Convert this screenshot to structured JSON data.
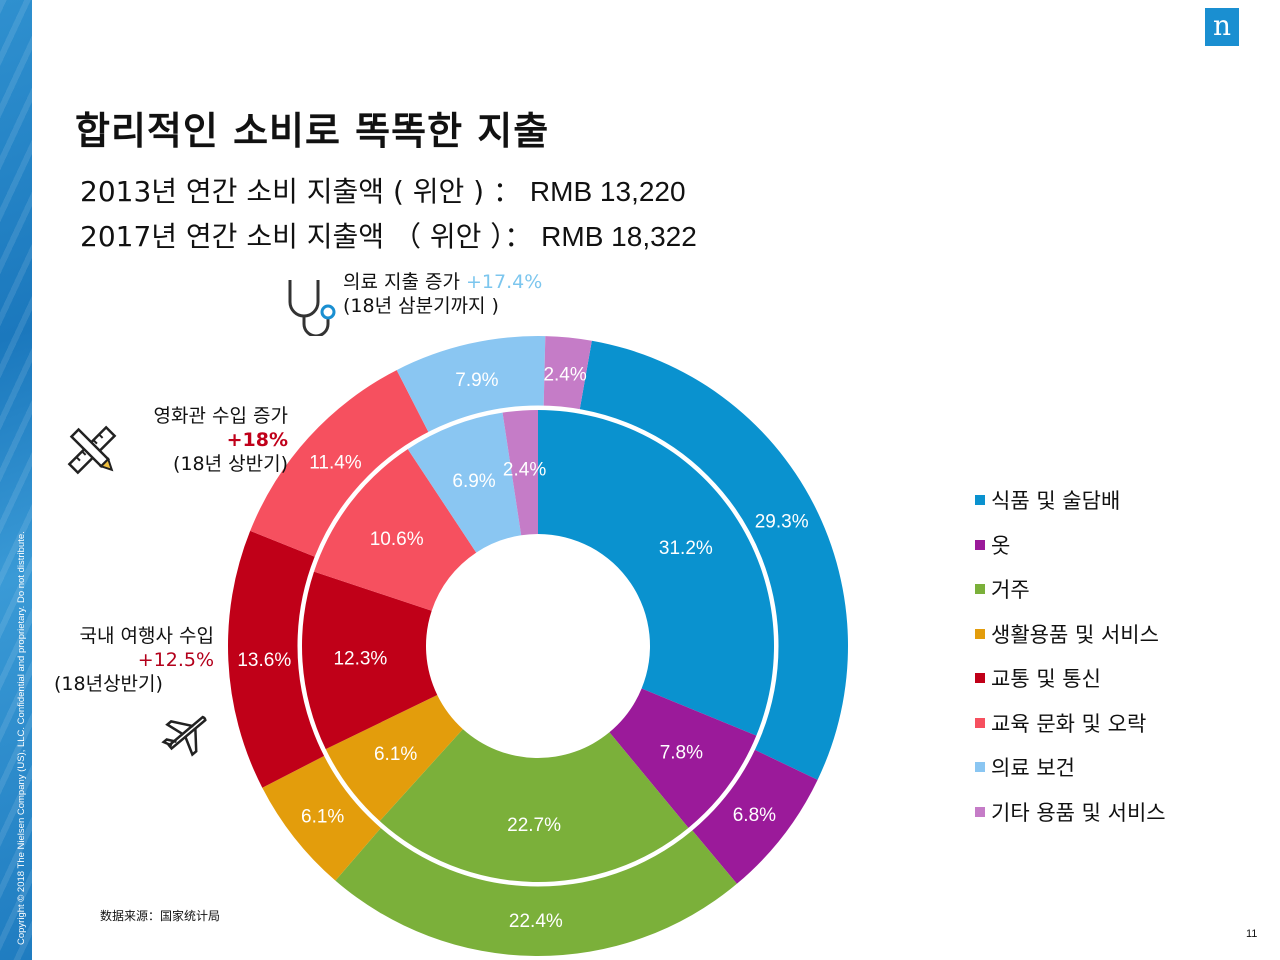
{
  "slide": {
    "title": "합리적인 소비로 똑똑한 지출",
    "logo_letter": "n",
    "copyright": "Copyright © 2018 The Nielsen Company (US), LLC. Confidential and proprietary. Do not distribute.",
    "source": "数据来源：国家统计局",
    "page_number": "11"
  },
  "spending": {
    "line_2013": {
      "label": "2013년 연간 소비 지출액 ( 위안 ) ：",
      "value": "RMB 13,220"
    },
    "line_2017": {
      "label": "2017년 연간 소비 지출액 （ 위안 ）：",
      "value": "RMB 18,322"
    }
  },
  "annotations": {
    "medical": {
      "label": "의료 지출 증가",
      "change": "+17.4%",
      "note": "(18년 삼분기까지 )"
    },
    "cinema": {
      "label": "영화관 수입 증가",
      "change": "+18%",
      "note": "(18년 상반기)"
    },
    "travel": {
      "label": "국내 여행사 수입",
      "change": "+12.5%",
      "note": "(18년상반기)"
    }
  },
  "chart_data": {
    "type": "pie",
    "subtype": "nested-donut",
    "categories": [
      "식품 및 술담배",
      "옷",
      "거주",
      "생활용품 및 서비스",
      "교통 및 통신",
      "교육 문화 및 오락",
      "의료 보건",
      "기타 용품 및 서비스"
    ],
    "colors": [
      "#0a92cf",
      "#9b1a9a",
      "#7bb03a",
      "#e39d0c",
      "#c00018",
      "#f6505f",
      "#8ac6f2",
      "#c57cc7"
    ],
    "series": [
      {
        "name": "outer",
        "values": [
          29.3,
          6.8,
          22.4,
          6.1,
          13.6,
          11.4,
          7.9,
          2.4
        ]
      },
      {
        "name": "inner",
        "values": [
          31.2,
          7.8,
          22.7,
          6.1,
          12.3,
          10.6,
          6.9,
          2.4
        ]
      }
    ],
    "outer_labels": [
      "29.3%",
      "6.8%",
      "22.4%",
      "6.1%",
      "13.6%",
      "11.4%",
      "7.9%",
      "2.4%"
    ],
    "inner_labels": [
      "31.2%",
      "7.8%",
      "22.7%",
      "6.1%",
      "12.3%",
      "10.6%",
      "6.9%",
      "2.4%"
    ],
    "legend_position": "right"
  }
}
